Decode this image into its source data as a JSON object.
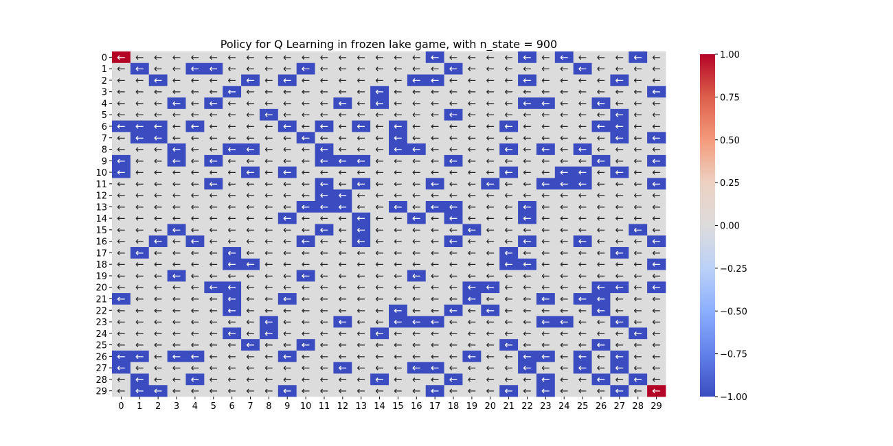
{
  "chart_data": {
    "type": "heatmap",
    "title": "Policy for Q Learning in frozen lake game, with n_state = 900",
    "xlabel": "",
    "ylabel": "",
    "x_ticks": [
      0,
      1,
      2,
      3,
      4,
      5,
      6,
      7,
      8,
      9,
      10,
      11,
      12,
      13,
      14,
      15,
      16,
      17,
      18,
      19,
      20,
      21,
      22,
      23,
      24,
      25,
      26,
      27,
      28,
      29
    ],
    "y_ticks": [
      0,
      1,
      2,
      3,
      4,
      5,
      6,
      7,
      8,
      9,
      10,
      11,
      12,
      13,
      14,
      15,
      16,
      17,
      18,
      19,
      20,
      21,
      22,
      23,
      24,
      25,
      26,
      27,
      28,
      29
    ],
    "cell_symbol": "←",
    "colormap": "coolwarm",
    "vmin": -1.0,
    "vmax": 1.0,
    "colorbar_ticks": [
      "1.00",
      "0.75",
      "0.50",
      "0.25",
      "0.00",
      "−0.25",
      "−0.50",
      "−0.75",
      "−1.00"
    ],
    "colors": {
      "hole": "#3b4cc0",
      "frozen": "#dcdcdc",
      "goal": "#b40426"
    },
    "cells_value_1": [
      [
        0,
        0
      ],
      [
        29,
        29
      ]
    ],
    "cells_value_minus_1": [
      [
        0,
        17
      ],
      [
        0,
        22
      ],
      [
        0,
        24
      ],
      [
        0,
        28
      ],
      [
        1,
        1
      ],
      [
        1,
        4
      ],
      [
        1,
        5
      ],
      [
        1,
        10
      ],
      [
        1,
        18
      ],
      [
        1,
        25
      ],
      [
        2,
        2
      ],
      [
        2,
        7
      ],
      [
        2,
        9
      ],
      [
        2,
        16
      ],
      [
        2,
        17
      ],
      [
        2,
        22
      ],
      [
        2,
        27
      ],
      [
        3,
        6
      ],
      [
        3,
        14
      ],
      [
        3,
        29
      ],
      [
        4,
        3
      ],
      [
        4,
        5
      ],
      [
        4,
        12
      ],
      [
        4,
        14
      ],
      [
        4,
        22
      ],
      [
        4,
        23
      ],
      [
        4,
        26
      ],
      [
        5,
        8
      ],
      [
        5,
        18
      ],
      [
        5,
        27
      ],
      [
        6,
        0
      ],
      [
        6,
        1
      ],
      [
        6,
        2
      ],
      [
        6,
        4
      ],
      [
        6,
        9
      ],
      [
        6,
        11
      ],
      [
        6,
        13
      ],
      [
        6,
        15
      ],
      [
        6,
        21
      ],
      [
        6,
        26
      ],
      [
        6,
        27
      ],
      [
        7,
        1
      ],
      [
        7,
        2
      ],
      [
        7,
        10
      ],
      [
        7,
        15
      ],
      [
        7,
        27
      ],
      [
        7,
        29
      ],
      [
        8,
        3
      ],
      [
        8,
        6
      ],
      [
        8,
        7
      ],
      [
        8,
        11
      ],
      [
        8,
        15
      ],
      [
        8,
        16
      ],
      [
        8,
        21
      ],
      [
        8,
        23
      ],
      [
        8,
        25
      ],
      [
        9,
        0
      ],
      [
        9,
        3
      ],
      [
        9,
        5
      ],
      [
        9,
        11
      ],
      [
        9,
        12
      ],
      [
        9,
        13
      ],
      [
        9,
        18
      ],
      [
        9,
        26
      ],
      [
        9,
        29
      ],
      [
        10,
        0
      ],
      [
        10,
        7
      ],
      [
        10,
        9
      ],
      [
        10,
        21
      ],
      [
        10,
        24
      ],
      [
        10,
        25
      ],
      [
        10,
        27
      ],
      [
        11,
        5
      ],
      [
        11,
        11
      ],
      [
        11,
        13
      ],
      [
        11,
        17
      ],
      [
        11,
        20
      ],
      [
        11,
        23
      ],
      [
        11,
        24
      ],
      [
        11,
        25
      ],
      [
        11,
        29
      ],
      [
        12,
        11
      ],
      [
        12,
        12
      ],
      [
        13,
        10
      ],
      [
        13,
        11
      ],
      [
        13,
        12
      ],
      [
        13,
        15
      ],
      [
        13,
        17
      ],
      [
        13,
        18
      ],
      [
        13,
        22
      ],
      [
        14,
        9
      ],
      [
        14,
        13
      ],
      [
        14,
        16
      ],
      [
        14,
        18
      ],
      [
        14,
        22
      ],
      [
        15,
        3
      ],
      [
        15,
        11
      ],
      [
        15,
        13
      ],
      [
        15,
        19
      ],
      [
        15,
        28
      ],
      [
        16,
        2
      ],
      [
        16,
        4
      ],
      [
        16,
        10
      ],
      [
        16,
        13
      ],
      [
        16,
        18
      ],
      [
        16,
        22
      ],
      [
        16,
        25
      ],
      [
        16,
        29
      ],
      [
        17,
        1
      ],
      [
        17,
        6
      ],
      [
        17,
        21
      ],
      [
        17,
        27
      ],
      [
        18,
        6
      ],
      [
        18,
        7
      ],
      [
        18,
        21
      ],
      [
        18,
        22
      ],
      [
        18,
        29
      ],
      [
        19,
        3
      ],
      [
        19,
        10
      ],
      [
        19,
        16
      ],
      [
        20,
        5
      ],
      [
        20,
        6
      ],
      [
        20,
        19
      ],
      [
        20,
        20
      ],
      [
        20,
        26
      ],
      [
        20,
        27
      ],
      [
        20,
        29
      ],
      [
        21,
        0
      ],
      [
        21,
        6
      ],
      [
        21,
        9
      ],
      [
        21,
        19
      ],
      [
        21,
        23
      ],
      [
        21,
        25
      ],
      [
        21,
        26
      ],
      [
        22,
        6
      ],
      [
        22,
        15
      ],
      [
        22,
        18
      ],
      [
        22,
        20
      ],
      [
        22,
        26
      ],
      [
        23,
        8
      ],
      [
        23,
        12
      ],
      [
        23,
        15
      ],
      [
        23,
        16
      ],
      [
        23,
        17
      ],
      [
        23,
        23
      ],
      [
        23,
        24
      ],
      [
        23,
        27
      ],
      [
        24,
        6
      ],
      [
        24,
        8
      ],
      [
        24,
        14
      ],
      [
        24,
        28
      ],
      [
        25,
        7
      ],
      [
        25,
        10
      ],
      [
        25,
        21
      ],
      [
        25,
        26
      ],
      [
        26,
        0
      ],
      [
        26,
        1
      ],
      [
        26,
        3
      ],
      [
        26,
        4
      ],
      [
        26,
        9
      ],
      [
        26,
        19
      ],
      [
        26,
        22
      ],
      [
        26,
        23
      ],
      [
        26,
        25
      ],
      [
        26,
        27
      ],
      [
        27,
        0
      ],
      [
        27,
        12
      ],
      [
        27,
        16
      ],
      [
        27,
        17
      ],
      [
        27,
        22
      ],
      [
        27,
        25
      ],
      [
        27,
        27
      ],
      [
        28,
        1
      ],
      [
        28,
        4
      ],
      [
        28,
        14
      ],
      [
        28,
        18
      ],
      [
        28,
        23
      ],
      [
        28,
        26
      ],
      [
        28,
        28
      ],
      [
        29,
        1
      ],
      [
        29,
        2
      ],
      [
        29,
        9
      ],
      [
        29,
        17
      ],
      [
        29,
        21
      ],
      [
        29,
        23
      ],
      [
        29,
        27
      ]
    ]
  }
}
